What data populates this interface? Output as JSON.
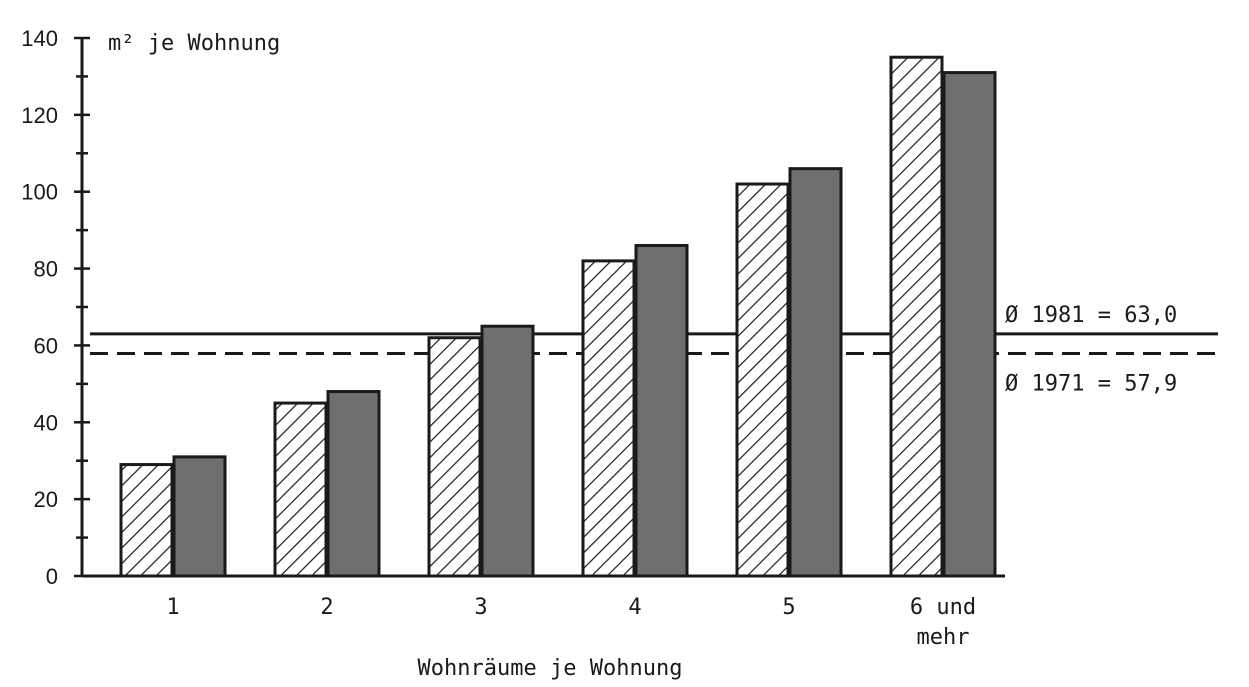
{
  "chart_data": {
    "type": "bar",
    "ylabel": "m² je Wohnung",
    "xlabel": "Wohnräume je Wohnung",
    "categories": [
      "1",
      "2",
      "3",
      "4",
      "5",
      "6 und mehr"
    ],
    "category_lines": [
      [
        "1"
      ],
      [
        "2"
      ],
      [
        "3"
      ],
      [
        "4"
      ],
      [
        "5"
      ],
      [
        "6 und",
        "mehr"
      ]
    ],
    "ylim": [
      0,
      140
    ],
    "yticks": [
      0,
      20,
      40,
      60,
      80,
      100,
      120,
      140
    ],
    "series": [
      {
        "values": [
          29,
          45,
          62,
          82,
          102,
          135
        ],
        "fill": "hatched"
      },
      {
        "values": [
          31,
          48,
          65,
          86,
          106,
          131
        ],
        "fill": "#6f6f6f"
      }
    ],
    "reference_lines": [
      {
        "label": "Ø 1981 = 63,0",
        "value": 63.0,
        "style": "solid"
      },
      {
        "label": "Ø 1971 = 57,9",
        "value": 57.9,
        "style": "dashed"
      }
    ],
    "grid": false
  }
}
